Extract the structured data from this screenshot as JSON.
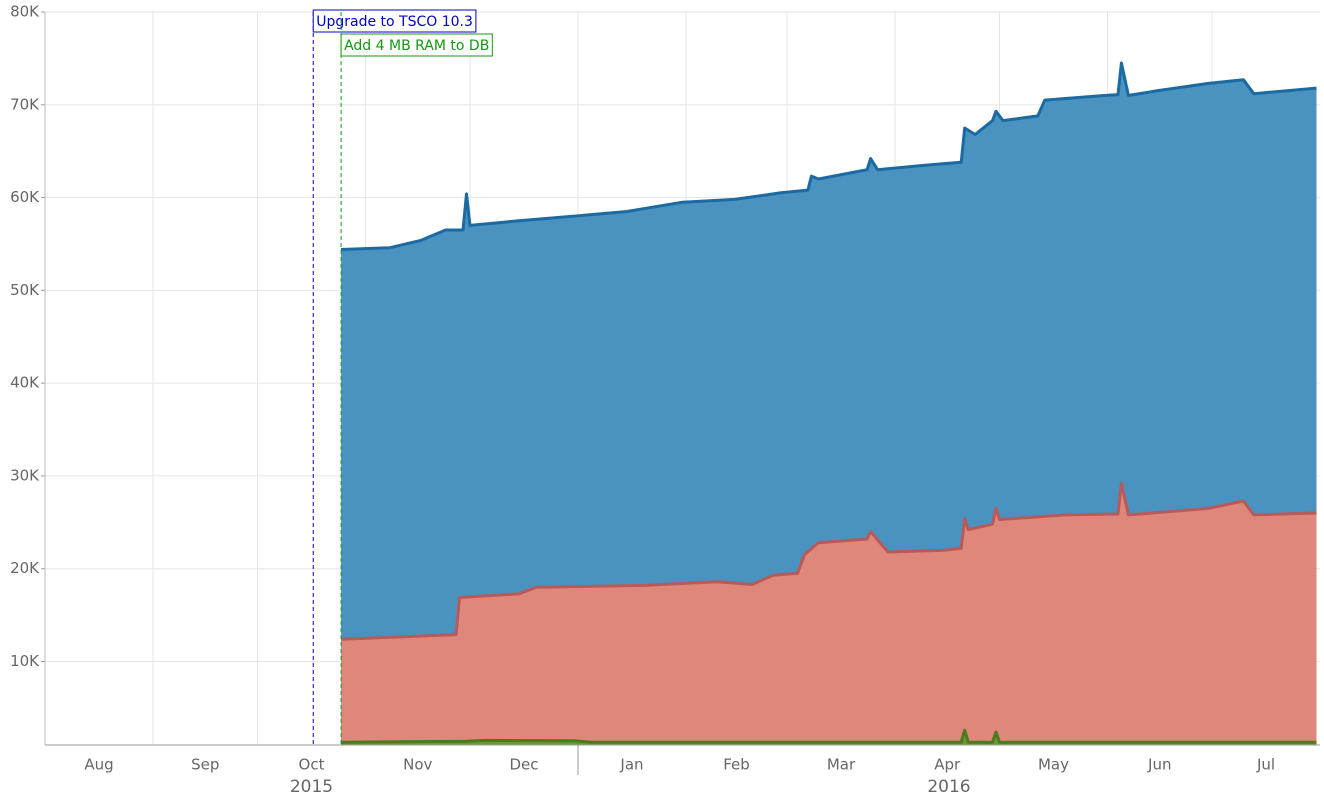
{
  "chart_data": {
    "type": "area",
    "xlim": [
      "2015-08",
      "2016-08"
    ],
    "ylim": [
      1000,
      80000
    ],
    "yticks": [
      {
        "value": 10000,
        "label": "10K"
      },
      {
        "value": 20000,
        "label": "20K"
      },
      {
        "value": 30000,
        "label": "30K"
      },
      {
        "value": 40000,
        "label": "40K"
      },
      {
        "value": 50000,
        "label": "50K"
      },
      {
        "value": 60000,
        "label": "60K"
      },
      {
        "value": 70000,
        "label": "70K"
      },
      {
        "value": 80000,
        "label": "80K"
      }
    ],
    "xticks": [
      {
        "value": "2015-08",
        "label": "Aug"
      },
      {
        "value": "2015-09",
        "label": "Sep"
      },
      {
        "value": "2015-10",
        "label": "Oct"
      },
      {
        "value": "2015-11",
        "label": "Nov"
      },
      {
        "value": "2015-12",
        "label": "Dec"
      },
      {
        "value": "2016-01",
        "label": "Jan"
      },
      {
        "value": "2016-02",
        "label": "Feb"
      },
      {
        "value": "2016-03",
        "label": "Mar"
      },
      {
        "value": "2016-04",
        "label": "Apr"
      },
      {
        "value": "2016-05",
        "label": "May"
      },
      {
        "value": "2016-06",
        "label": "Jun"
      },
      {
        "value": "2016-07",
        "label": "Jul"
      }
    ],
    "years": [
      {
        "value": "2015",
        "label": "2015"
      },
      {
        "value": "2016",
        "label": "2016"
      }
    ],
    "grid": true,
    "annotations": [
      {
        "x": "2015-10-17",
        "label": "Upgrade to TSCO 10.3",
        "color": "#0000cc"
      },
      {
        "x": "2015-10-25",
        "label": "Add 4 MB RAM to DB",
        "color": "#119911"
      }
    ],
    "series": [
      {
        "color": "#1b6aa3",
        "fill": "#4a93c0",
        "x": [
          "2015-10-25",
          "2015-11-08",
          "2015-11-17",
          "2015-11-24",
          "2015-11-29",
          "2015-11-30",
          "2015-12-01",
          "2015-12-15",
          "2015-12-31",
          "2016-01-15",
          "2016-01-31",
          "2016-02-15",
          "2016-02-28",
          "2016-03-07",
          "2016-03-08",
          "2016-03-10",
          "2016-03-24",
          "2016-03-25",
          "2016-03-27",
          "2016-04-10",
          "2016-04-20",
          "2016-04-21",
          "2016-04-24",
          "2016-04-29",
          "2016-04-30",
          "2016-05-02",
          "2016-05-12",
          "2016-05-14",
          "2016-05-31",
          "2016-06-04",
          "2016-06-05",
          "2016-06-07",
          "2016-06-15",
          "2016-06-30",
          "2016-07-10",
          "2016-07-13",
          "2016-07-31"
        ],
        "values": [
          54400,
          54600,
          55400,
          56500,
          56500,
          60400,
          57000,
          57500,
          58000,
          58500,
          59500,
          59800,
          60500,
          60800,
          62300,
          62000,
          63000,
          64200,
          63000,
          63500,
          63800,
          67500,
          66800,
          68300,
          69300,
          68300,
          68800,
          70500,
          71000,
          71100,
          74500,
          71000,
          71500,
          72300,
          72700,
          71200,
          71800
        ]
      },
      {
        "color": "#b85a5a",
        "fill": "#e0877c",
        "x": [
          "2015-10-25",
          "2015-11-27",
          "2015-11-28",
          "2015-12-15",
          "2015-12-20",
          "2016-01-20",
          "2016-02-10",
          "2016-02-20",
          "2016-02-26",
          "2016-03-04",
          "2016-03-06",
          "2016-03-10",
          "2016-03-24",
          "2016-03-25",
          "2016-03-30",
          "2016-04-15",
          "2016-04-20",
          "2016-04-21",
          "2016-04-22",
          "2016-04-29",
          "2016-04-30",
          "2016-05-01",
          "2016-05-20",
          "2016-06-04",
          "2016-06-05",
          "2016-06-07",
          "2016-06-30",
          "2016-07-10",
          "2016-07-13",
          "2016-07-31"
        ],
        "values": [
          12400,
          12900,
          16900,
          17300,
          18000,
          18200,
          18600,
          18300,
          19300,
          19500,
          21500,
          22800,
          23200,
          24000,
          21800,
          22000,
          22200,
          25400,
          24200,
          24800,
          26500,
          25300,
          25800,
          25900,
          29200,
          25800,
          26500,
          27300,
          25800,
          26000
        ]
      },
      {
        "color": "#4c7a1c",
        "fill": "#6a9a30",
        "x": [
          "2015-10-25",
          "2015-11-30",
          "2015-12-05",
          "2015-12-31",
          "2016-01-05",
          "2016-04-20",
          "2016-04-21",
          "2016-04-22",
          "2016-04-29",
          "2016-04-30",
          "2016-05-01",
          "2016-07-31"
        ],
        "values": [
          1300,
          1400,
          1500,
          1450,
          1300,
          1300,
          2600,
          1300,
          1300,
          2400,
          1300,
          1300
        ]
      }
    ]
  }
}
